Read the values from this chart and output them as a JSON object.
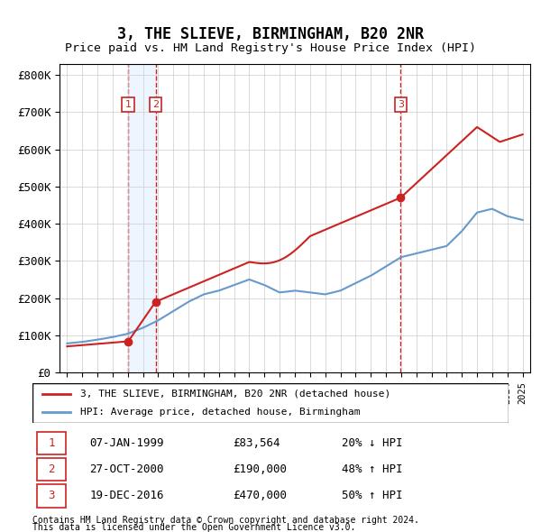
{
  "title": "3, THE SLIEVE, BIRMINGHAM, B20 2NR",
  "subtitle": "Price paid vs. HM Land Registry's House Price Index (HPI)",
  "footnote1": "Contains HM Land Registry data © Crown copyright and database right 2024.",
  "footnote2": "This data is licensed under the Open Government Licence v3.0.",
  "legend_line1": "3, THE SLIEVE, BIRMINGHAM, B20 2NR (detached house)",
  "legend_line2": "HPI: Average price, detached house, Birmingham",
  "table": [
    {
      "num": "1",
      "date": "07-JAN-1999",
      "price": "£83,564",
      "change": "20% ↓ HPI"
    },
    {
      "num": "2",
      "date": "27-OCT-2000",
      "price": "£190,000",
      "change": "48% ↑ HPI"
    },
    {
      "num": "3",
      "date": "19-DEC-2016",
      "price": "£470,000",
      "change": "50% ↑ HPI"
    }
  ],
  "sale_dates": [
    1999.03,
    2000.83,
    2016.97
  ],
  "sale_prices": [
    83564,
    190000,
    470000
  ],
  "hpi_color": "#6699cc",
  "price_color": "#cc2222",
  "vline_color": "#cc2222",
  "bg_shade_color": "#ddeeff",
  "ylim": [
    0,
    830000
  ],
  "yticks": [
    0,
    100000,
    200000,
    300000,
    400000,
    500000,
    600000,
    700000,
    800000
  ],
  "ytick_labels": [
    "£0",
    "£100K",
    "£200K",
    "£300K",
    "£400K",
    "£500K",
    "£600K",
    "£700K",
    "£800K"
  ],
  "xlim_start": 1994.5,
  "xlim_end": 2025.5
}
